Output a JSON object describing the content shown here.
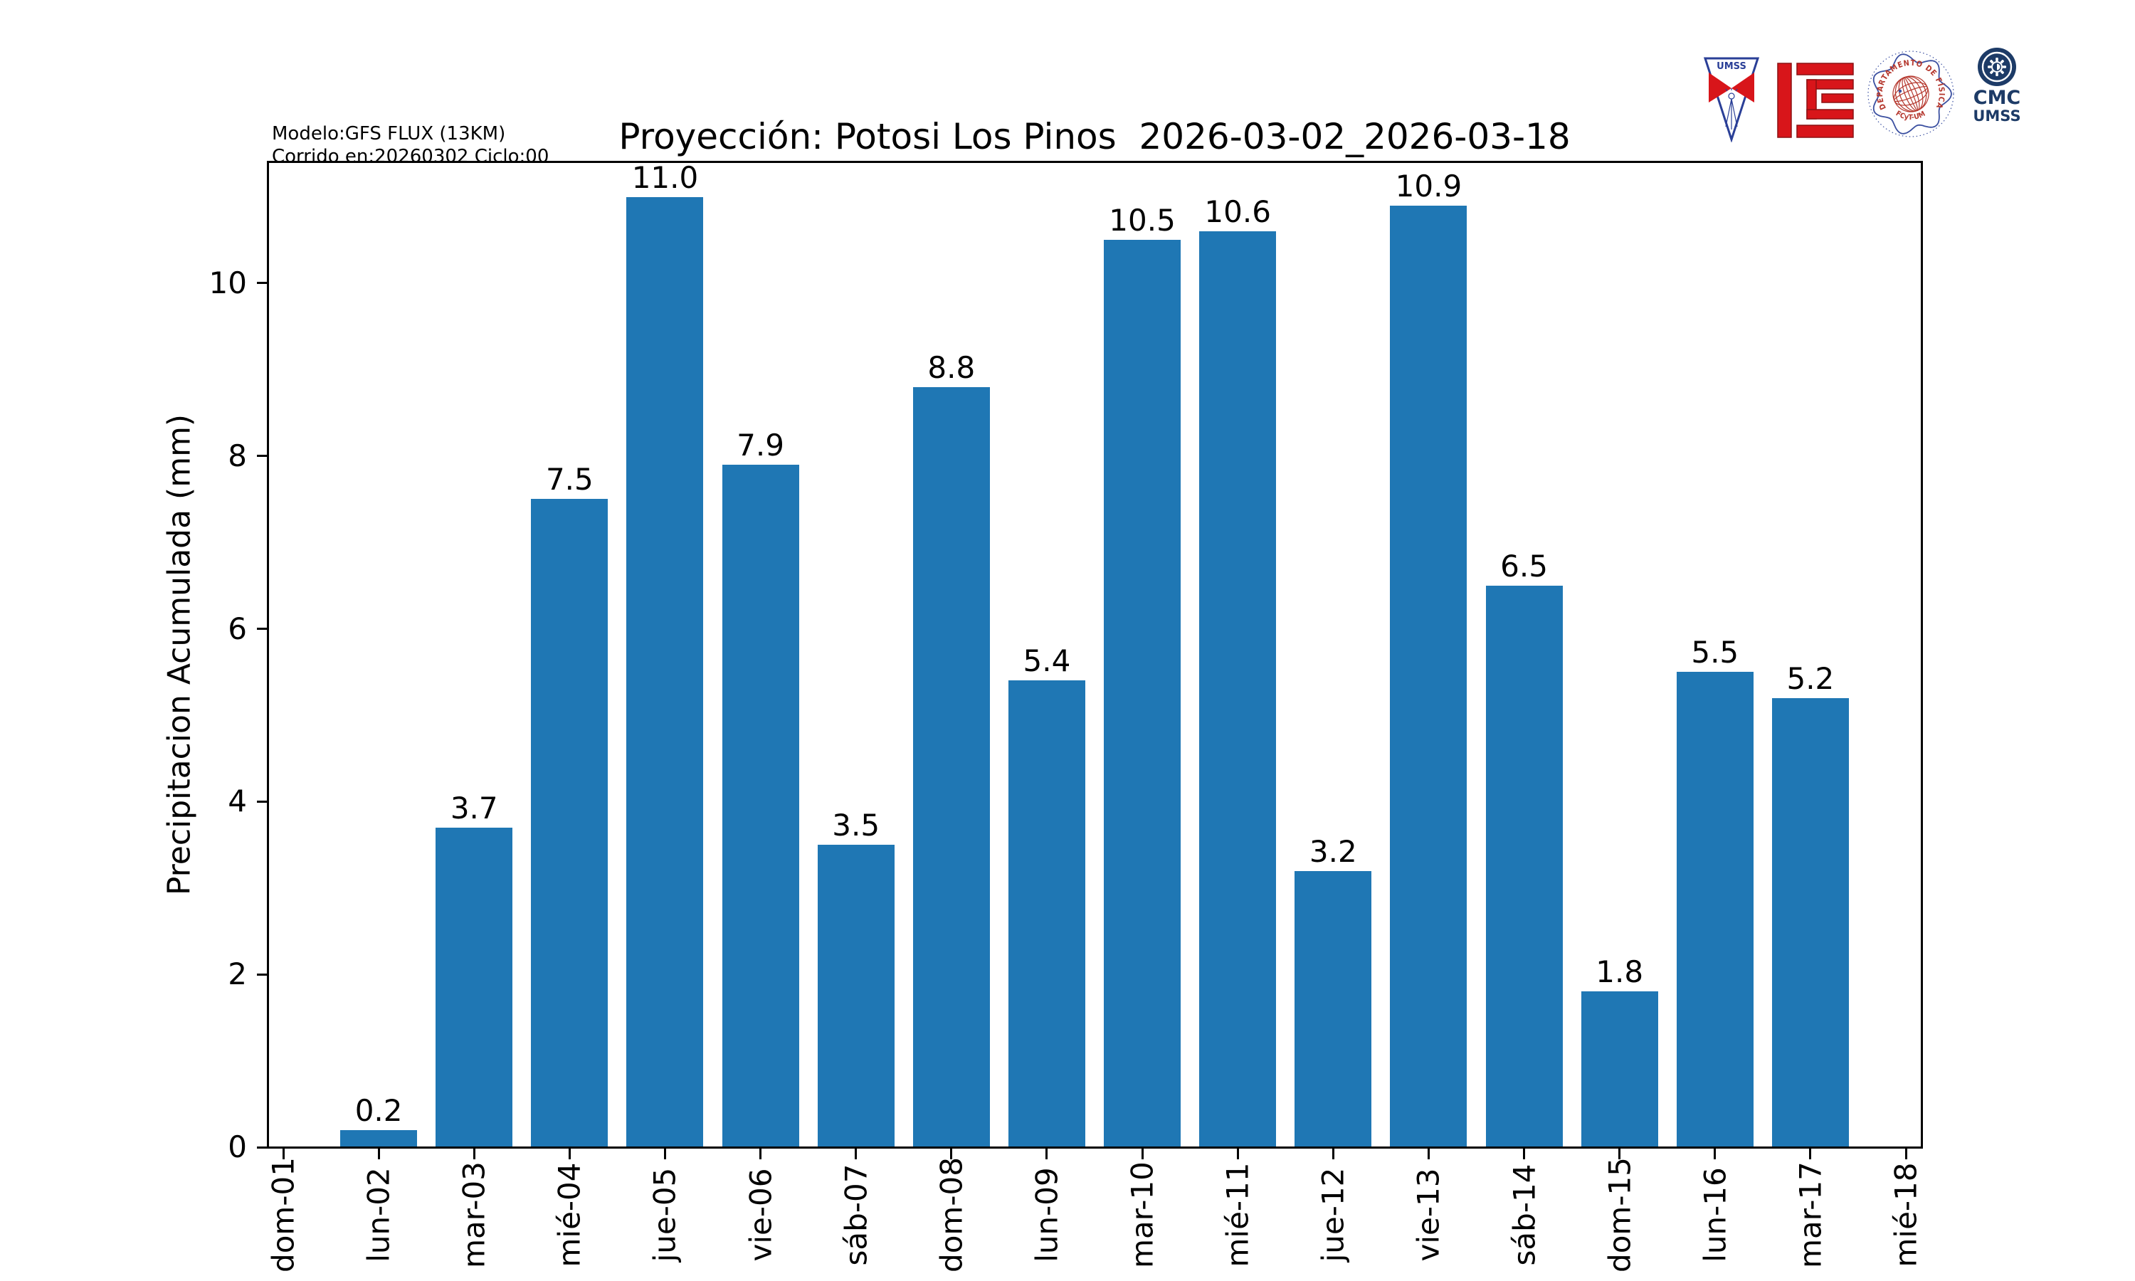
{
  "header": {
    "model_line1": "Modelo:GFS FLUX (13KM)",
    "model_line2": "Corrido en:20260302 Ciclo:00"
  },
  "logos": {
    "shield_text": "UMSS",
    "seal_arc_top": "DEPARTAMENTO DE FÍSICA",
    "seal_arc_bottom": "FCyT-UMSS",
    "cmc_line1": "CMC",
    "cmc_line2": "UMSS"
  },
  "chart_data": {
    "type": "bar",
    "title": "Proyección: Potosi Los Pinos  2026-03-02_2026-03-18",
    "xlabel": "",
    "ylabel": "Precipitacion Acumulada (mm)",
    "categories": [
      "dom-01",
      "lun-02",
      "mar-03",
      "mié-04",
      "jue-05",
      "vie-06",
      "sáb-07",
      "dom-08",
      "lun-09",
      "mar-10",
      "mié-11",
      "jue-12",
      "vie-13",
      "sáb-14",
      "dom-15",
      "lun-16",
      "mar-17",
      "mié-18"
    ],
    "values": [
      null,
      0.2,
      3.7,
      7.5,
      11.0,
      7.9,
      3.5,
      8.8,
      5.4,
      10.5,
      10.6,
      3.2,
      10.9,
      6.5,
      1.8,
      5.5,
      5.2,
      null
    ],
    "bar_value_labels": [
      "",
      "0.2",
      "3.7",
      "7.5",
      "11.0",
      "7.9",
      "3.5",
      "8.8",
      "5.4",
      "10.5",
      "10.6",
      "3.2",
      "10.9",
      "6.5",
      "1.8",
      "5.5",
      "5.2",
      ""
    ],
    "y_ticks": [
      0,
      2,
      4,
      6,
      8,
      10
    ],
    "ylim": [
      0,
      11.4
    ],
    "bar_color": "#1f77b4",
    "grid": false,
    "legend": null
  }
}
